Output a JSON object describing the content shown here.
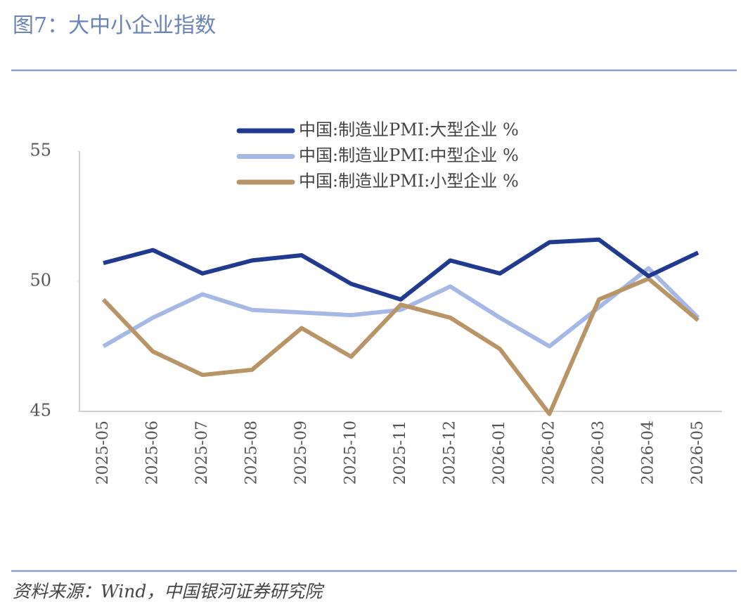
{
  "header": {
    "title": "图7：大中小企业指数"
  },
  "chart_data": {
    "type": "line",
    "categories": [
      "2025-05",
      "2025-06",
      "2025-07",
      "2025-08",
      "2025-09",
      "2025-10",
      "2025-11",
      "2025-12",
      "2026-01",
      "2026-02",
      "2026-03",
      "2026-04",
      "2026-05"
    ],
    "series": [
      {
        "name": "中国:制造业PMI:大型企业 %",
        "color": "#1f3a8f",
        "values": [
          50.7,
          51.2,
          50.3,
          50.8,
          51.0,
          49.9,
          49.3,
          50.8,
          50.3,
          51.5,
          51.6,
          50.2,
          51.1
        ]
      },
      {
        "name": "中国:制造业PMI:中型企业 %",
        "color": "#a6b9e6",
        "values": [
          47.5,
          48.6,
          49.5,
          48.9,
          48.8,
          48.7,
          48.9,
          49.8,
          48.6,
          47.5,
          49.0,
          50.5,
          48.6
        ]
      },
      {
        "name": "中国:制造业PMI:小型企业 %",
        "color": "#b89466",
        "values": [
          49.3,
          47.3,
          46.4,
          46.6,
          48.2,
          47.1,
          49.1,
          48.6,
          47.4,
          44.9,
          49.3,
          50.1,
          48.5
        ]
      }
    ],
    "ylim": [
      45,
      55
    ],
    "yticks": [
      45,
      50,
      55
    ],
    "legend": "top"
  },
  "footer": {
    "source": "资料来源：Wind，中国银河证券研究院"
  }
}
